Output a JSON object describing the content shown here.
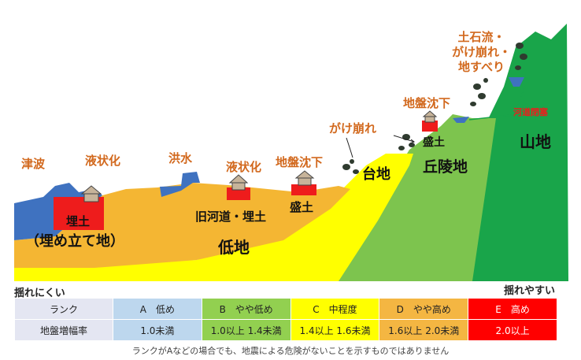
{
  "hazards": {
    "tsunami": "津波",
    "liquefaction_1": "液状化",
    "flood": "洪水",
    "liquefaction_2": "液状化",
    "subsidence_1": "地盤沈下",
    "slope_failure_1": "がけ崩れ",
    "subsidence_2": "地盤沈下",
    "debris_flow": "土石流・\nがけ崩れ・\n地すべり",
    "dammed_lake": "河道閉塞"
  },
  "zones": {
    "reclaimed": "埋土",
    "reclaimed_paren": "（埋め立て地）",
    "old_river": "旧河道・埋土",
    "lowland": "低地",
    "fill_1": "盛土",
    "terrace": "台地",
    "fill_2": "盛土",
    "hills": "丘陵地",
    "mountain": "山地"
  },
  "scale": {
    "left": "揺れにくい",
    "right": "揺れやすい"
  },
  "table": {
    "header_rank": "ランク",
    "header_amp": "地盤増幅率",
    "ranks": [
      {
        "label": "A　低め",
        "amp": "1.0未満",
        "color": "#bdd7ee",
        "text_color": "#222222"
      },
      {
        "label": "B　やや低め",
        "amp": "1.0以上 1.4未満",
        "color": "#92d050",
        "text_color": "#222222"
      },
      {
        "label": "C　中程度",
        "amp": "1.4以上 1.6未満",
        "color": "#ffff00",
        "text_color": "#222222"
      },
      {
        "label": "D　やや高め",
        "amp": "1.6以上 2.0未満",
        "color": "#f4b642",
        "text_color": "#222222"
      },
      {
        "label": "E　高め",
        "amp": "2.0以上",
        "color": "#ff0000",
        "text_color": "#ffffff"
      }
    ]
  },
  "note": "ランクがAなどの場合でも、地震による危険がないことを示すものではありません",
  "colors": {
    "water": "#3f72c0",
    "lowland": "#f4b633",
    "terrace": "#ffff00",
    "hills": "#7dc44e",
    "mountain": "#19a54a",
    "fill": "#ee1c1c",
    "hazard_text": "#d2691e",
    "rock": "#2f3b2f",
    "house": "#c7b49a"
  }
}
